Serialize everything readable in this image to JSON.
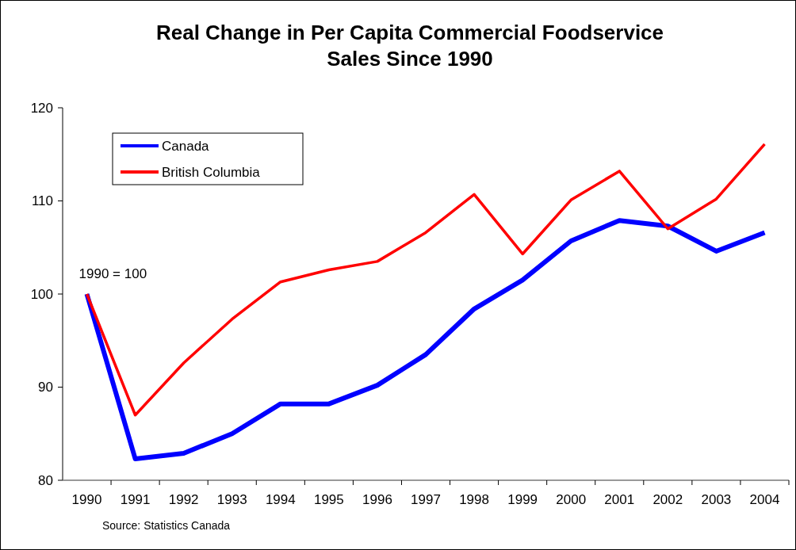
{
  "chart_data": {
    "type": "line",
    "title": "Real Change in Per Capita Commercial Foodservice\nSales Since 1990",
    "categories": [
      "1990",
      "1991",
      "1992",
      "1993",
      "1994",
      "1995",
      "1996",
      "1997",
      "1998",
      "1999",
      "2000",
      "2001",
      "2002",
      "2003",
      "2004"
    ],
    "series": [
      {
        "name": "Canada",
        "color": "#0000ff",
        "values": [
          100,
          82.3,
          82.9,
          85.0,
          88.2,
          88.2,
          90.2,
          93.5,
          98.4,
          101.5,
          105.7,
          107.9,
          107.3,
          104.6,
          106.6
        ]
      },
      {
        "name": "British Columbia",
        "color": "#ff0000",
        "values": [
          100,
          87.0,
          92.6,
          97.3,
          101.3,
          102.6,
          103.5,
          106.6,
          110.7,
          104.3,
          110.1,
          113.2,
          107.0,
          110.2,
          116.1
        ]
      }
    ],
    "ylim": [
      80,
      120
    ],
    "yticks": [
      80,
      90,
      100,
      110,
      120
    ],
    "grid": false,
    "legend": "top left",
    "marker": "none",
    "line_style": "solid",
    "annotations": [
      {
        "text": "1990 = 100",
        "x": "1990",
        "y": 100
      },
      "Source:  Statistics Canada"
    ]
  }
}
